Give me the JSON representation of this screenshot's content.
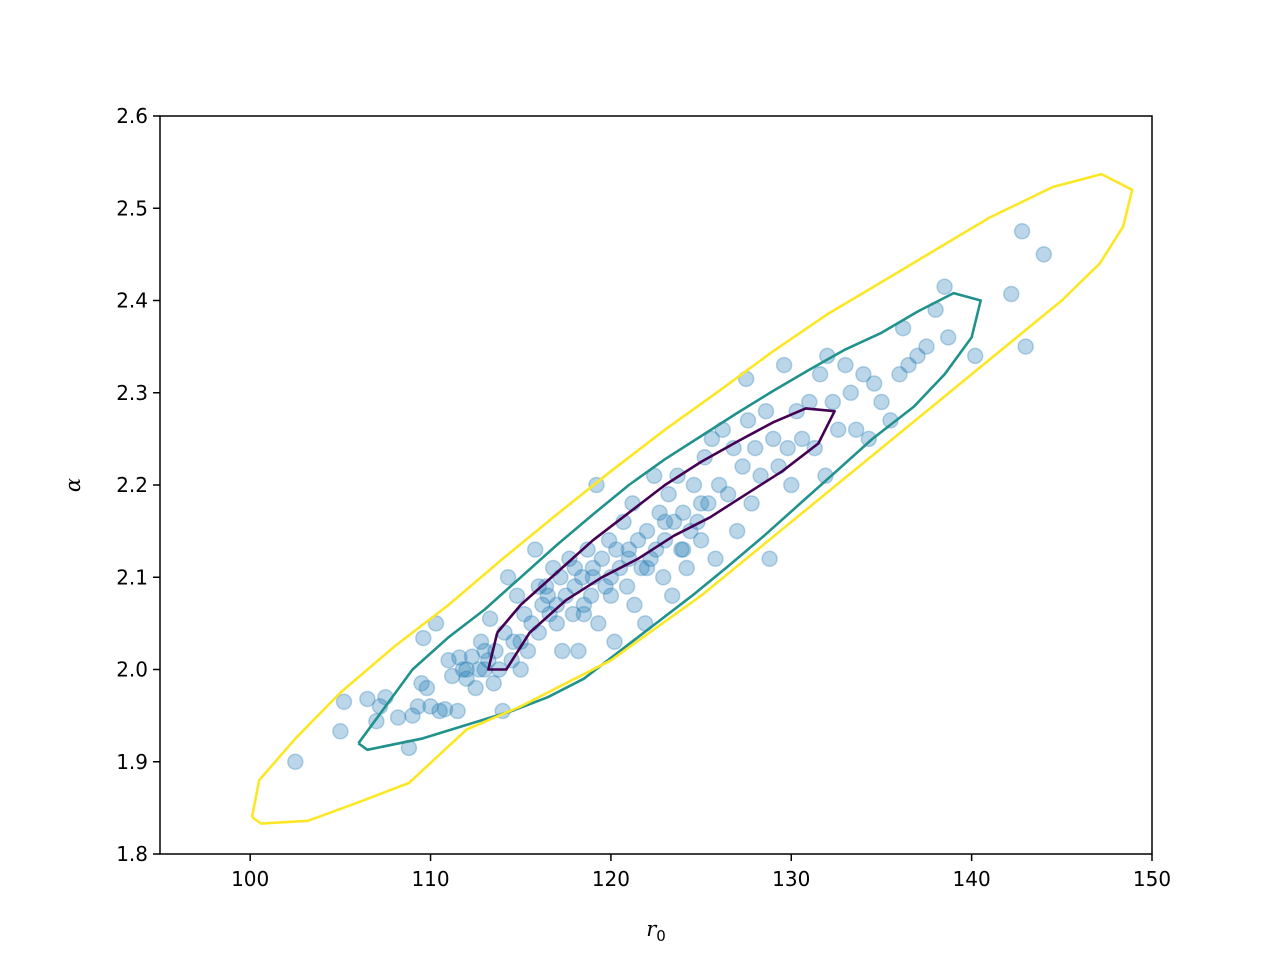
{
  "chart_data": {
    "type": "scatter",
    "title": "",
    "xlabel": "r",
    "xlabel_sub": "0",
    "ylabel": "α",
    "xlim": [
      95,
      150
    ],
    "ylim": [
      1.8,
      2.6
    ],
    "xticks": [
      100,
      110,
      120,
      130,
      140,
      150
    ],
    "yticks": [
      1.8,
      1.9,
      2.0,
      2.1,
      2.2,
      2.3,
      2.4,
      2.5,
      2.6
    ],
    "xtick_labels": [
      "100",
      "110",
      "120",
      "130",
      "140",
      "150"
    ],
    "ytick_labels": [
      "1.8",
      "1.9",
      "2.0",
      "2.1",
      "2.2",
      "2.3",
      "2.4",
      "2.5",
      "2.6"
    ],
    "grid": false,
    "point_color": "#1f77b4",
    "point_alpha": 0.3,
    "points": [
      [
        102.5,
        1.9
      ],
      [
        105.0,
        1.933
      ],
      [
        105.2,
        1.965
      ],
      [
        106.5,
        1.968
      ],
      [
        107.0,
        1.944
      ],
      [
        107.2,
        1.96
      ],
      [
        107.5,
        1.97
      ],
      [
        108.2,
        1.948
      ],
      [
        108.8,
        1.915
      ],
      [
        109.0,
        1.95
      ],
      [
        109.3,
        1.96
      ],
      [
        109.5,
        1.985
      ],
      [
        109.6,
        2.034
      ],
      [
        109.8,
        1.98
      ],
      [
        110.0,
        1.96
      ],
      [
        110.3,
        2.05
      ],
      [
        110.5,
        1.955
      ],
      [
        110.8,
        1.957
      ],
      [
        111.0,
        2.01
      ],
      [
        111.2,
        1.993
      ],
      [
        111.5,
        1.955
      ],
      [
        111.6,
        2.013
      ],
      [
        111.8,
        2.0
      ],
      [
        112.0,
        1.99
      ],
      [
        112.3,
        2.014
      ],
      [
        112.5,
        1.98
      ],
      [
        112.7,
        2.0
      ],
      [
        112.8,
        2.03
      ],
      [
        113.0,
        2.0
      ],
      [
        113.2,
        2.01
      ],
      [
        113.3,
        2.055
      ],
      [
        113.5,
        1.985
      ],
      [
        113.6,
        2.02
      ],
      [
        113.8,
        2.0
      ],
      [
        114.0,
        1.955
      ],
      [
        114.1,
        2.04
      ],
      [
        114.3,
        2.1
      ],
      [
        114.5,
        2.01
      ],
      [
        114.6,
        2.03
      ],
      [
        114.8,
        2.08
      ],
      [
        115.0,
        2.0
      ],
      [
        115.2,
        2.06
      ],
      [
        115.4,
        2.02
      ],
      [
        115.6,
        2.05
      ],
      [
        115.8,
        2.13
      ],
      [
        116.0,
        2.04
      ],
      [
        116.2,
        2.07
      ],
      [
        116.4,
        2.09
      ],
      [
        116.6,
        2.06
      ],
      [
        116.8,
        2.11
      ],
      [
        117.0,
        2.05
      ],
      [
        117.2,
        2.1
      ],
      [
        117.3,
        2.02
      ],
      [
        117.5,
        2.08
      ],
      [
        117.7,
        2.12
      ],
      [
        117.9,
        2.06
      ],
      [
        118.0,
        2.09
      ],
      [
        118.2,
        2.02
      ],
      [
        118.4,
        2.1
      ],
      [
        118.5,
        2.07
      ],
      [
        118.7,
        2.13
      ],
      [
        118.9,
        2.08
      ],
      [
        119.0,
        2.11
      ],
      [
        119.2,
        2.2
      ],
      [
        119.3,
        2.05
      ],
      [
        119.5,
        2.12
      ],
      [
        119.7,
        2.09
      ],
      [
        119.9,
        2.14
      ],
      [
        120.0,
        2.1
      ],
      [
        120.2,
        2.03
      ],
      [
        120.3,
        2.13
      ],
      [
        120.5,
        2.11
      ],
      [
        120.7,
        2.16
      ],
      [
        120.9,
        2.09
      ],
      [
        121.0,
        2.12
      ],
      [
        121.2,
        2.18
      ],
      [
        121.3,
        2.07
      ],
      [
        121.5,
        2.14
      ],
      [
        121.7,
        2.11
      ],
      [
        121.9,
        2.05
      ],
      [
        122.0,
        2.15
      ],
      [
        122.2,
        2.12
      ],
      [
        122.4,
        2.21
      ],
      [
        122.5,
        2.13
      ],
      [
        122.7,
        2.17
      ],
      [
        122.9,
        2.1
      ],
      [
        123.0,
        2.14
      ],
      [
        123.2,
        2.19
      ],
      [
        123.4,
        2.08
      ],
      [
        123.5,
        2.16
      ],
      [
        123.7,
        2.21
      ],
      [
        123.9,
        2.13
      ],
      [
        124.0,
        2.17
      ],
      [
        124.2,
        2.11
      ],
      [
        124.4,
        2.15
      ],
      [
        124.6,
        2.2
      ],
      [
        124.8,
        2.16
      ],
      [
        125.0,
        2.14
      ],
      [
        125.2,
        2.23
      ],
      [
        125.4,
        2.18
      ],
      [
        125.6,
        2.25
      ],
      [
        125.8,
        2.12
      ],
      [
        126.0,
        2.2
      ],
      [
        126.2,
        2.26
      ],
      [
        126.5,
        2.19
      ],
      [
        126.8,
        2.24
      ],
      [
        127.0,
        2.15
      ],
      [
        127.3,
        2.22
      ],
      [
        127.6,
        2.27
      ],
      [
        127.8,
        2.18
      ],
      [
        128.0,
        2.24
      ],
      [
        128.3,
        2.21
      ],
      [
        128.6,
        2.28
      ],
      [
        128.8,
        2.12
      ],
      [
        129.0,
        2.25
      ],
      [
        129.3,
        2.22
      ],
      [
        129.6,
        2.33
      ],
      [
        129.8,
        2.24
      ],
      [
        130.0,
        2.2
      ],
      [
        130.3,
        2.28
      ],
      [
        130.6,
        2.25
      ],
      [
        131.0,
        2.29
      ],
      [
        131.3,
        2.24
      ],
      [
        131.6,
        2.32
      ],
      [
        131.9,
        2.21
      ],
      [
        132.0,
        2.34
      ],
      [
        132.3,
        2.29
      ],
      [
        132.6,
        2.26
      ],
      [
        133.0,
        2.33
      ],
      [
        133.3,
        2.3
      ],
      [
        133.6,
        2.26
      ],
      [
        134.0,
        2.32
      ],
      [
        134.3,
        2.25
      ],
      [
        134.6,
        2.31
      ],
      [
        135.0,
        2.29
      ],
      [
        135.5,
        2.27
      ],
      [
        136.0,
        2.32
      ],
      [
        136.2,
        2.37
      ],
      [
        136.5,
        2.33
      ],
      [
        137.0,
        2.34
      ],
      [
        137.5,
        2.35
      ],
      [
        138.0,
        2.39
      ],
      [
        138.5,
        2.415
      ],
      [
        138.7,
        2.36
      ],
      [
        140.2,
        2.34
      ],
      [
        142.2,
        2.407
      ],
      [
        142.8,
        2.475
      ],
      [
        143.0,
        2.35
      ],
      [
        144.0,
        2.45
      ],
      [
        127.5,
        2.315
      ],
      [
        116.5,
        2.08
      ],
      [
        118.5,
        2.06
      ],
      [
        117.0,
        2.07
      ],
      [
        119.0,
        2.1
      ],
      [
        121.0,
        2.13
      ],
      [
        122.0,
        2.11
      ],
      [
        123.0,
        2.16
      ],
      [
        124.0,
        2.13
      ],
      [
        120.0,
        2.08
      ],
      [
        118.0,
        2.11
      ],
      [
        113.0,
        2.02
      ],
      [
        112.0,
        2.0
      ],
      [
        115.0,
        2.03
      ],
      [
        116.0,
        2.09
      ],
      [
        125.0,
        2.18
      ]
    ],
    "contours": [
      {
        "name": "",
        "color": "#440154",
        "points": [
          [
            113.7,
            2.04
          ],
          [
            115,
            2.07
          ],
          [
            117,
            2.105
          ],
          [
            119,
            2.14
          ],
          [
            121,
            2.17
          ],
          [
            123,
            2.2
          ],
          [
            125,
            2.225
          ],
          [
            127,
            2.247
          ],
          [
            129,
            2.268
          ],
          [
            130.8,
            2.283
          ],
          [
            132.4,
            2.28
          ],
          [
            131.5,
            2.245
          ],
          [
            129.5,
            2.215
          ],
          [
            127.5,
            2.19
          ],
          [
            125.5,
            2.165
          ],
          [
            123.5,
            2.145
          ],
          [
            121.5,
            2.12
          ],
          [
            119.5,
            2.1
          ],
          [
            117.5,
            2.075
          ],
          [
            115.5,
            2.04
          ],
          [
            114.2,
            2.0
          ],
          [
            113.2,
            2.0
          ],
          [
            113.7,
            2.04
          ]
        ]
      },
      {
        "name": "",
        "color": "#21918c",
        "points": [
          [
            106.0,
            1.92
          ],
          [
            107.5,
            1.96
          ],
          [
            109,
            2.0
          ],
          [
            111,
            2.035
          ],
          [
            113,
            2.065
          ],
          [
            115,
            2.1
          ],
          [
            117,
            2.135
          ],
          [
            119,
            2.168
          ],
          [
            121,
            2.2
          ],
          [
            123,
            2.228
          ],
          [
            125,
            2.253
          ],
          [
            127,
            2.278
          ],
          [
            129,
            2.302
          ],
          [
            131,
            2.325
          ],
          [
            133,
            2.347
          ],
          [
            135,
            2.365
          ],
          [
            137,
            2.388
          ],
          [
            139,
            2.408
          ],
          [
            140.5,
            2.4
          ],
          [
            140,
            2.36
          ],
          [
            138.5,
            2.32
          ],
          [
            136.8,
            2.285
          ],
          [
            134.5,
            2.25
          ],
          [
            132.5,
            2.215
          ],
          [
            130.5,
            2.18
          ],
          [
            128.5,
            2.145
          ],
          [
            126.5,
            2.112
          ],
          [
            124.5,
            2.08
          ],
          [
            122.5,
            2.05
          ],
          [
            120.5,
            2.02
          ],
          [
            118.5,
            1.99
          ],
          [
            116.5,
            1.97
          ],
          [
            114.5,
            1.955
          ],
          [
            112,
            1.94
          ],
          [
            109.5,
            1.925
          ],
          [
            106.5,
            1.913
          ],
          [
            106.0,
            1.92
          ]
        ]
      },
      {
        "name": "",
        "color": "#fde725",
        "points": [
          [
            100.1,
            1.84
          ],
          [
            100.5,
            1.88
          ],
          [
            102.5,
            1.925
          ],
          [
            105,
            1.975
          ],
          [
            108,
            2.025
          ],
          [
            111,
            2.07
          ],
          [
            114,
            2.12
          ],
          [
            117,
            2.168
          ],
          [
            120,
            2.215
          ],
          [
            123,
            2.26
          ],
          [
            126,
            2.302
          ],
          [
            129,
            2.345
          ],
          [
            132,
            2.385
          ],
          [
            135,
            2.42
          ],
          [
            138,
            2.455
          ],
          [
            141,
            2.49
          ],
          [
            144.5,
            2.523
          ],
          [
            147.2,
            2.537
          ],
          [
            148.9,
            2.52
          ],
          [
            148.4,
            2.48
          ],
          [
            147.1,
            2.44
          ],
          [
            145,
            2.4
          ],
          [
            142.5,
            2.36
          ],
          [
            140,
            2.32
          ],
          [
            137.5,
            2.28
          ],
          [
            135,
            2.24
          ],
          [
            132.5,
            2.2
          ],
          [
            130,
            2.16
          ],
          [
            127.5,
            2.12
          ],
          [
            125,
            2.08
          ],
          [
            122.5,
            2.045
          ],
          [
            120,
            2.01
          ],
          [
            117.5,
            1.985
          ],
          [
            115,
            1.96
          ],
          [
            112,
            1.935
          ],
          [
            108.8,
            1.877
          ],
          [
            106,
            1.856
          ],
          [
            103.2,
            1.836
          ],
          [
            100.6,
            1.833
          ],
          [
            100.1,
            1.84
          ]
        ]
      }
    ]
  }
}
